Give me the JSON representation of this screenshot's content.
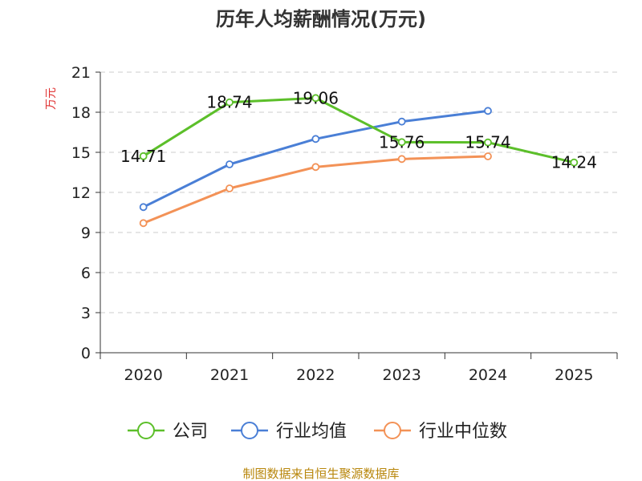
{
  "chart_data": {
    "type": "line",
    "title": "历年人均薪酬情况(万元)",
    "ylabel": "万元",
    "xlabel": "",
    "categories": [
      "2020",
      "2021",
      "2022",
      "2023",
      "2024",
      "2025"
    ],
    "ylim": [
      0,
      21
    ],
    "yticks": [
      "0",
      "3",
      "6",
      "9",
      "12",
      "15",
      "18",
      "21"
    ],
    "grid": true,
    "legend_position": "bottom",
    "series": [
      {
        "name": "公司",
        "color": "#5cbf2a",
        "values": [
          14.71,
          18.74,
          19.06,
          15.76,
          15.74,
          14.24
        ],
        "labels": [
          "14.71",
          "18.74",
          "19.06",
          "15.76",
          "15.74",
          "14.24"
        ]
      },
      {
        "name": "行业均值",
        "color": "#4a7fd6",
        "values": [
          10.9,
          14.1,
          16.0,
          17.3,
          18.1,
          null
        ]
      },
      {
        "name": "行业中位数",
        "color": "#f39257",
        "values": [
          9.7,
          12.3,
          13.9,
          14.5,
          14.7,
          null
        ]
      }
    ]
  },
  "source": "制图数据来自恒生聚源数据库",
  "colors": {
    "ylabel": "#e03030",
    "source": "#b8860b",
    "grid": "#cccccc",
    "axis": "#333333"
  }
}
